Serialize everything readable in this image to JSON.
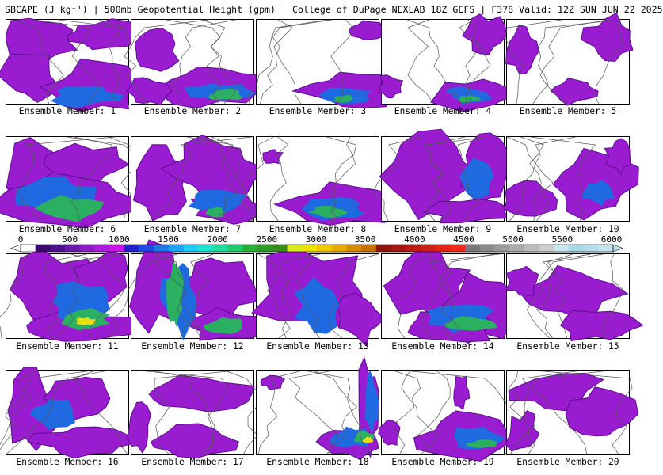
{
  "title": "SBCAPE (J kg⁻¹) | 500mb Geopotential Height (gpm) | College of DuPage NEXLAB 18Z GEFS | F378 Valid: 12Z SUN JUN 22 2025",
  "colorbar": {
    "tick_labels": [
      "0",
      "500",
      "1000",
      "1500",
      "2000",
      "2500",
      "3000",
      "3500",
      "4000",
      "4500",
      "5000",
      "5500",
      "6000"
    ],
    "colors": [
      "#ffffff",
      "#3a0b6e",
      "#4c0f8e",
      "#6a1aa8",
      "#8a1cc2",
      "#a81ed8",
      "#c41ae8",
      "#2222c8",
      "#1e4ae0",
      "#1f78e8",
      "#1fa2f0",
      "#1ec8f0",
      "#20e0d0",
      "#20d89a",
      "#22c86a",
      "#28b03a",
      "#2e9c28",
      "#3a8a1e",
      "#d8e81a",
      "#f0e000",
      "#f0c800",
      "#e8a800",
      "#d88a00",
      "#c87000",
      "#8a1410",
      "#a01810",
      "#b81c14",
      "#cc2018",
      "#e02418",
      "#f02a1a",
      "#787878",
      "#8a8a8a",
      "#9a9a9a",
      "#aaaaaa",
      "#bcbcbc",
      "#cccccc",
      "#c8e8f0",
      "#a8d8e8",
      "#b4dcea",
      "#c4e4f0"
    ]
  },
  "members": [
    {
      "label": "Ensemble Member: 1"
    },
    {
      "label": "Ensemble Member: 2"
    },
    {
      "label": "Ensemble Member: 3"
    },
    {
      "label": "Ensemble Member: 4"
    },
    {
      "label": "Ensemble Member: 5"
    },
    {
      "label": "Ensemble Member: 6"
    },
    {
      "label": "Ensemble Member: 7"
    },
    {
      "label": "Ensemble Member: 8"
    },
    {
      "label": "Ensemble Member: 9"
    },
    {
      "label": "Ensemble Member: 10"
    },
    {
      "label": "Ensemble Member: 11"
    },
    {
      "label": "Ensemble Member: 12"
    },
    {
      "label": "Ensemble Member: 13"
    },
    {
      "label": "Ensemble Member: 14"
    },
    {
      "label": "Ensemble Member: 15"
    },
    {
      "label": "Ensemble Member: 16"
    },
    {
      "label": "Ensemble Member: 17"
    },
    {
      "label": "Ensemble Member: 18"
    },
    {
      "label": "Ensemble Member: 19"
    },
    {
      "label": "Ensemble Member: 20"
    }
  ]
}
